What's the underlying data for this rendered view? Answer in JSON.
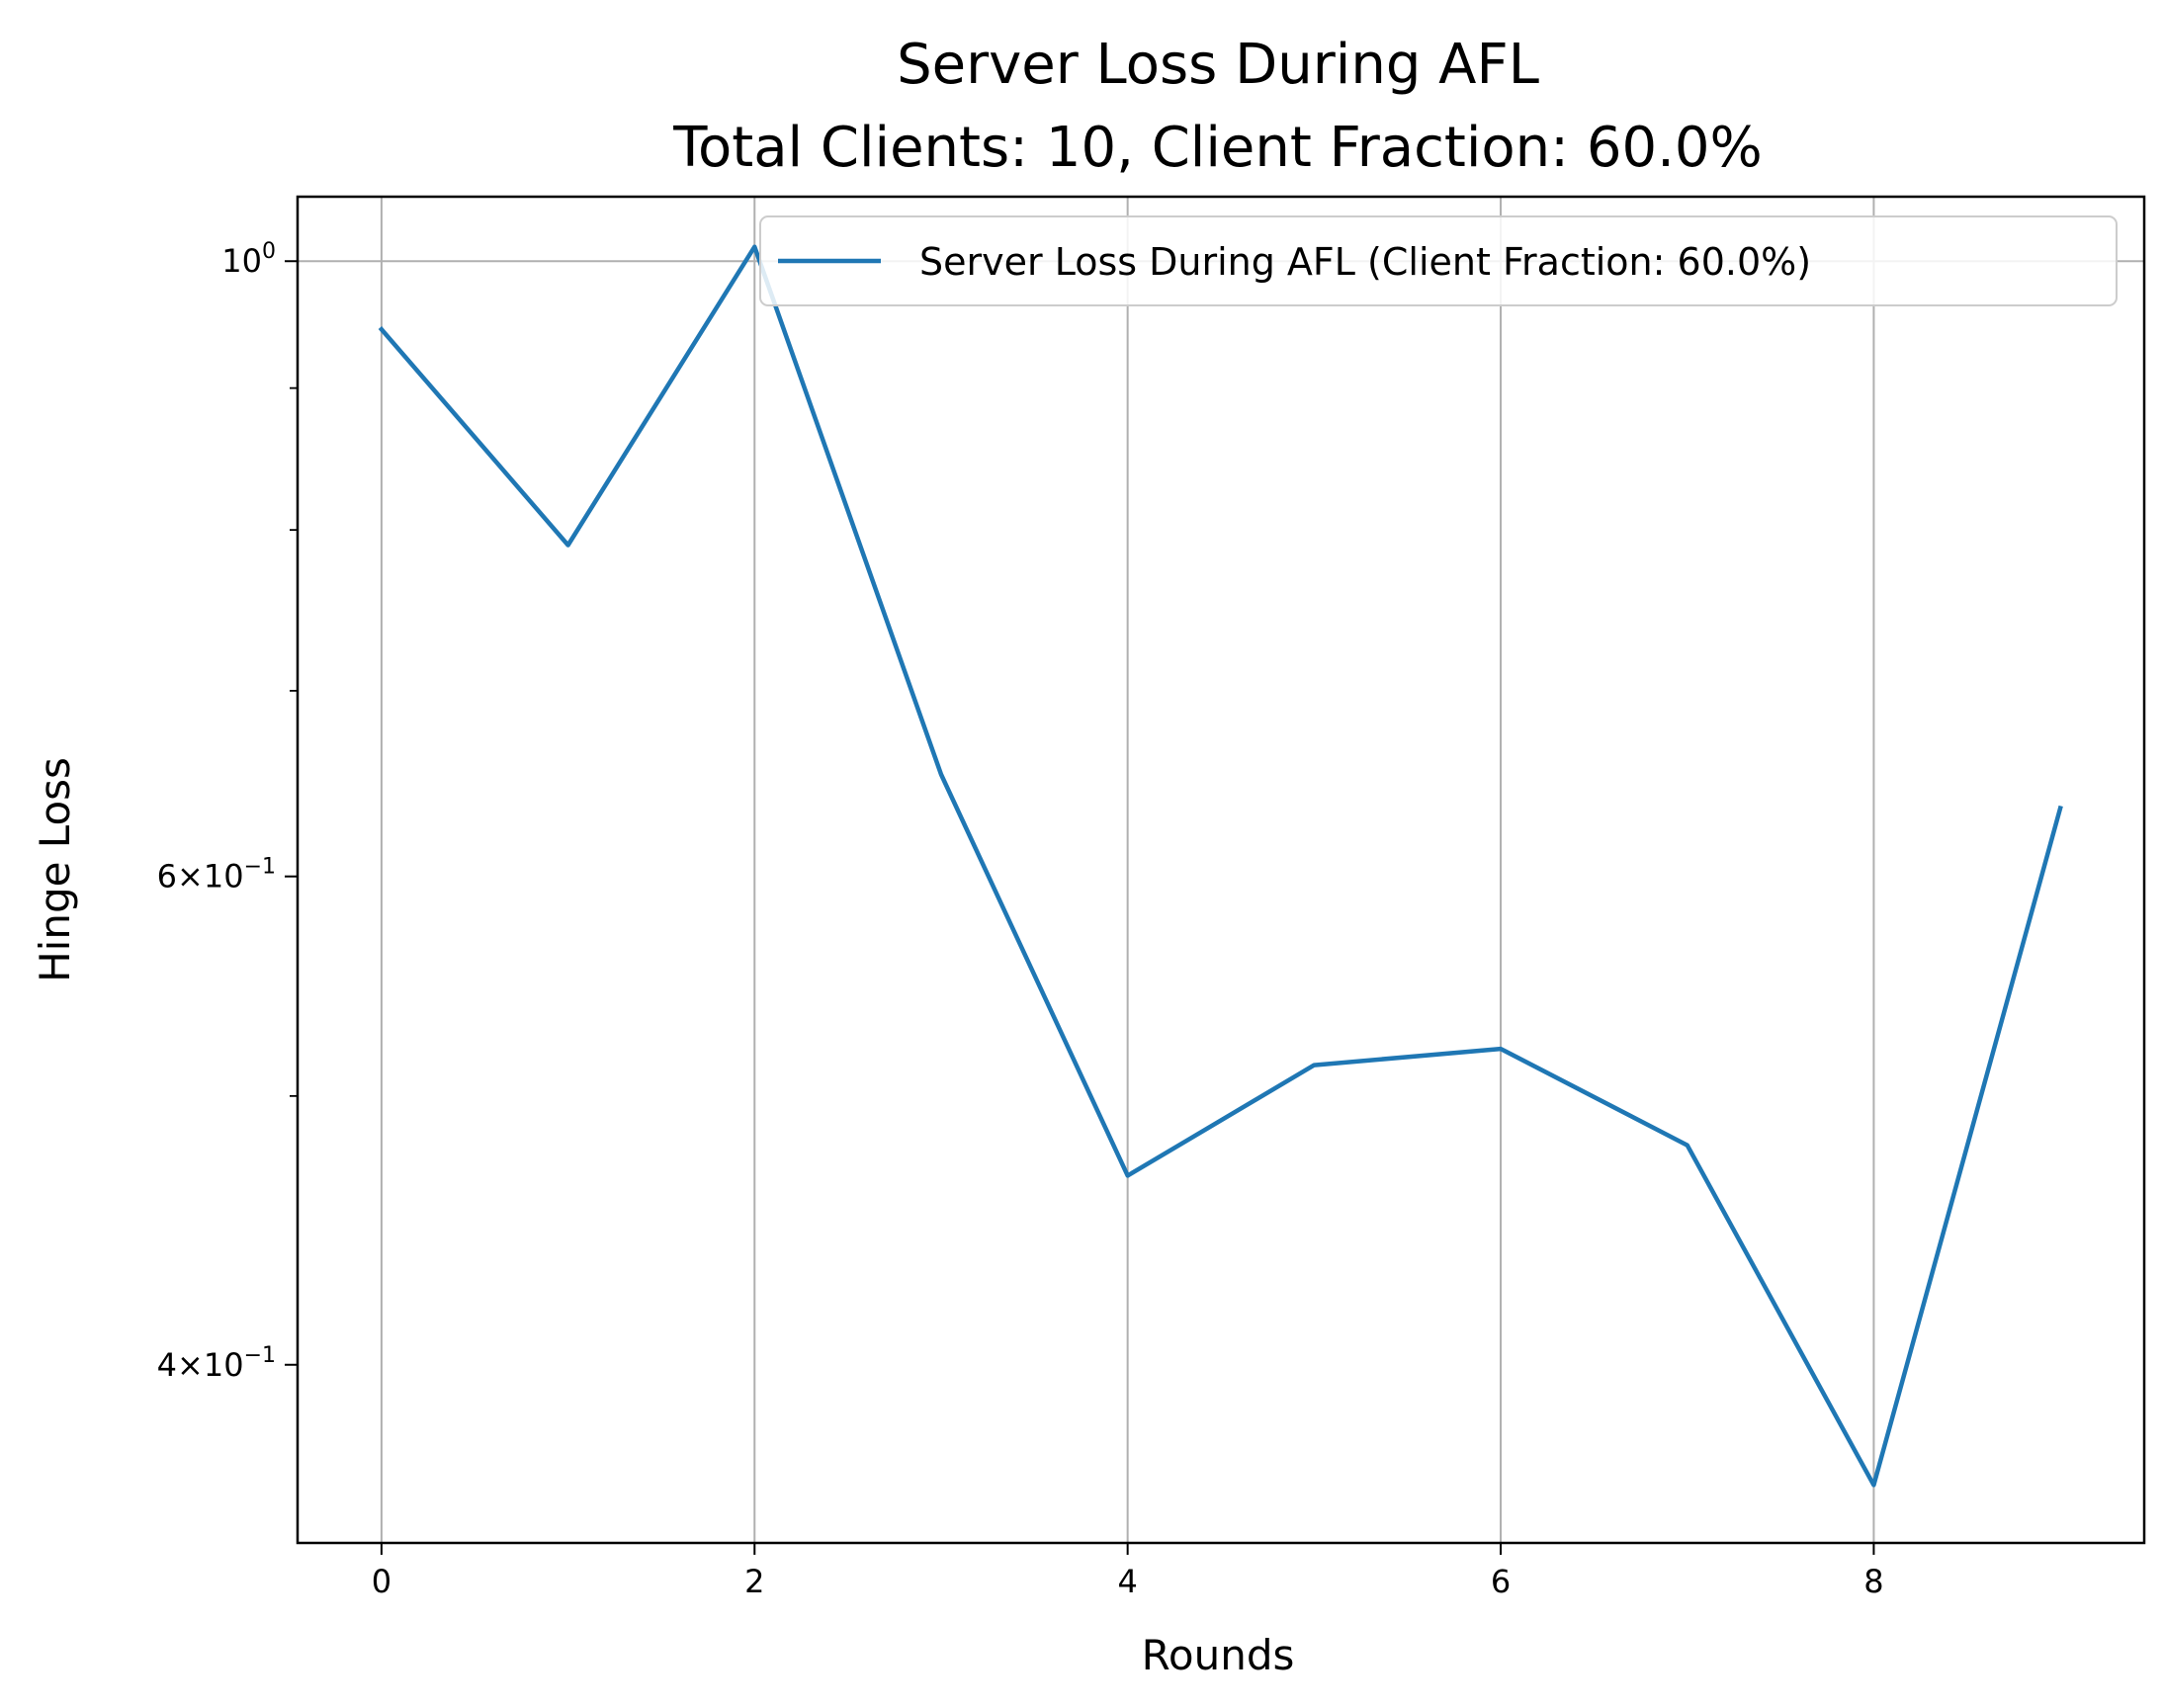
{
  "chart_data": {
    "type": "line",
    "title": "Server Loss During AFL",
    "subtitle": "Total Clients: 10, Client Fraction: 60.0%",
    "xlabel": "Rounds",
    "ylabel": "Hinge Loss",
    "x_ticks": [
      0,
      2,
      4,
      6,
      8
    ],
    "x_tick_labels": [
      "0",
      "2",
      "4",
      "6",
      "8"
    ],
    "y_scale": "log",
    "y_ticks": [
      {
        "value": 1.0,
        "base": "10",
        "exp": "0"
      },
      {
        "value": 0.6,
        "mant": "6",
        "base": "10",
        "exp": "−1"
      },
      {
        "value": 0.4,
        "mant": "4",
        "base": "10",
        "exp": "−1"
      }
    ],
    "xlim": [
      -0.45,
      9.45
    ],
    "ylim": [
      0.345,
      1.055
    ],
    "grid": "vertical-and-major-y",
    "legend_position": "top-right",
    "series": [
      {
        "name": "Server Loss During AFL (Client Fraction: 60.0%)",
        "color": "#1f77b4",
        "x": [
          0,
          1,
          2,
          3,
          4,
          5,
          6,
          7,
          8,
          9
        ],
        "y": [
          0.945,
          0.79,
          1.012,
          0.653,
          0.468,
          0.513,
          0.52,
          0.48,
          0.362,
          0.635
        ]
      }
    ]
  }
}
